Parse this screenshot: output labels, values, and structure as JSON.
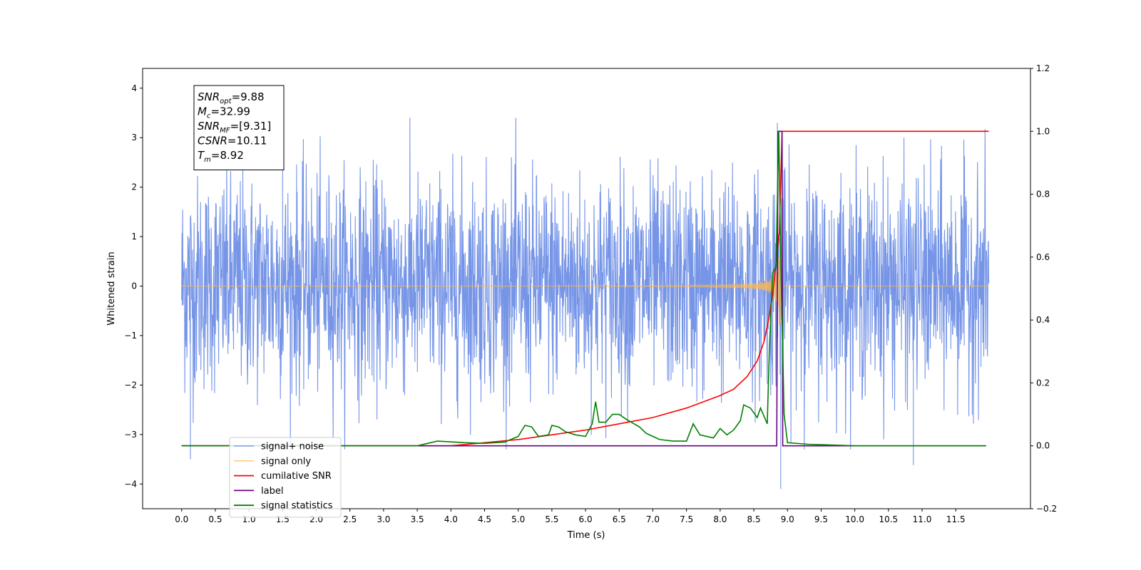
{
  "chart_data": {
    "type": "line",
    "title": "",
    "xlabel": "Time (s)",
    "ylabel": "Whitened strain",
    "xlim": [
      -0.58,
      12.61
    ],
    "ylim": [
      -4.5,
      4.4
    ],
    "y2lim": [
      -0.2,
      1.2
    ],
    "x_ticks": [
      0.0,
      0.5,
      1.0,
      1.5,
      2.0,
      2.5,
      3.0,
      3.5,
      4.0,
      4.5,
      5.0,
      5.5,
      6.0,
      6.5,
      7.0,
      7.5,
      8.0,
      8.5,
      9.0,
      9.5,
      10.0,
      10.5,
      11.0,
      11.5
    ],
    "x_tick_labels": [
      "0.0",
      "0.5",
      "1.0",
      "1.5",
      "2.0",
      "2.5",
      "3.0",
      "3.5",
      "4.0",
      "4.5",
      "5.0",
      "5.5",
      "6.0",
      "6.5",
      "7.0",
      "7.5",
      "8.0",
      "8.5",
      "9.0",
      "9.5",
      "10.0",
      "10.5",
      "11.0",
      "11.5"
    ],
    "y_ticks": [
      -4,
      -3,
      -2,
      -1,
      0,
      1,
      2,
      3,
      4
    ],
    "y_tick_labels": [
      "−4",
      "−3",
      "−2",
      "−1",
      "0",
      "1",
      "2",
      "3",
      "4"
    ],
    "y2_ticks": [
      -0.2,
      0.0,
      0.2,
      0.4,
      0.6,
      0.8,
      1.0,
      1.2
    ],
    "y2_tick_labels": [
      "−0.2",
      "0.0",
      "0.2",
      "0.4",
      "0.6",
      "0.8",
      "1.0",
      "1.2"
    ],
    "grid": false,
    "legend_position": "lower-left",
    "annotation": {
      "lines": [
        {
          "sym": "SNR",
          "sub": "opt",
          "rest": "=9.88"
        },
        {
          "sym": "M",
          "sub": "c",
          "rest": "=32.99"
        },
        {
          "sym": "SNR",
          "sub": "MF",
          "rest": "=[9.31]"
        },
        {
          "sym": "CSNR",
          "sub": "",
          "rest": "=10.11"
        },
        {
          "sym": "T",
          "sub": "m",
          "rest": "=8.92"
        }
      ]
    },
    "series": [
      {
        "name": "signal+ noise",
        "axis": "left",
        "color": "#6f8fe6",
        "kind": "noise",
        "x_range": [
          0.0,
          11.99
        ],
        "typical_band": [
          -1.9,
          2.0
        ],
        "notable_peaks": [
          [
            0.13,
            -3.5
          ],
          [
            1.5,
            3.55
          ],
          [
            8.85,
            3.3
          ],
          [
            8.9,
            -4.1
          ],
          [
            10.87,
            -3.62
          ]
        ]
      },
      {
        "name": "signal only",
        "axis": "left",
        "color": "#ffb84d",
        "kind": "chirp",
        "x_range": [
          0.0,
          11.99
        ],
        "merger_time": 8.9,
        "peak_amplitude": 1.3
      },
      {
        "name": "cumilative SNR",
        "axis": "right",
        "color": "#ff0000",
        "points": [
          [
            0,
            0
          ],
          [
            4.0,
            0.0
          ],
          [
            5.0,
            0.02
          ],
          [
            6.0,
            0.05
          ],
          [
            6.5,
            0.07
          ],
          [
            7.0,
            0.09
          ],
          [
            7.5,
            0.12
          ],
          [
            8.0,
            0.16
          ],
          [
            8.2,
            0.18
          ],
          [
            8.4,
            0.22
          ],
          [
            8.55,
            0.27
          ],
          [
            8.65,
            0.33
          ],
          [
            8.72,
            0.4
          ],
          [
            8.78,
            0.48
          ],
          [
            8.82,
            0.56
          ],
          [
            8.85,
            0.62
          ],
          [
            8.88,
            0.68
          ],
          [
            8.92,
            1.0
          ],
          [
            11.99,
            1.0
          ]
        ]
      },
      {
        "name": "label",
        "axis": "right",
        "color": "#6a0080",
        "points": [
          [
            0,
            0
          ],
          [
            8.84,
            0
          ],
          [
            8.86,
            1.0
          ],
          [
            8.92,
            1.0
          ],
          [
            8.93,
            0
          ],
          [
            11.95,
            0
          ]
        ]
      },
      {
        "name": "signal statistics",
        "axis": "right",
        "color": "#008000",
        "points": [
          [
            0,
            0
          ],
          [
            2.0,
            0.0
          ],
          [
            3.0,
            0.0
          ],
          [
            3.5,
            0.0
          ],
          [
            3.8,
            0.015
          ],
          [
            4.2,
            0.01
          ],
          [
            4.5,
            0.008
          ],
          [
            4.8,
            0.012
          ],
          [
            5.0,
            0.03
          ],
          [
            5.1,
            0.065
          ],
          [
            5.2,
            0.06
          ],
          [
            5.3,
            0.03
          ],
          [
            5.45,
            0.035
          ],
          [
            5.5,
            0.065
          ],
          [
            5.6,
            0.06
          ],
          [
            5.7,
            0.045
          ],
          [
            5.85,
            0.035
          ],
          [
            6.0,
            0.03
          ],
          [
            6.1,
            0.07
          ],
          [
            6.15,
            0.14
          ],
          [
            6.2,
            0.075
          ],
          [
            6.3,
            0.075
          ],
          [
            6.4,
            0.1
          ],
          [
            6.5,
            0.1
          ],
          [
            6.6,
            0.085
          ],
          [
            6.8,
            0.06
          ],
          [
            6.9,
            0.04
          ],
          [
            7.0,
            0.03
          ],
          [
            7.1,
            0.02
          ],
          [
            7.3,
            0.015
          ],
          [
            7.5,
            0.015
          ],
          [
            7.6,
            0.07
          ],
          [
            7.7,
            0.035
          ],
          [
            7.9,
            0.025
          ],
          [
            8.0,
            0.055
          ],
          [
            8.1,
            0.035
          ],
          [
            8.2,
            0.05
          ],
          [
            8.3,
            0.08
          ],
          [
            8.35,
            0.13
          ],
          [
            8.45,
            0.12
          ],
          [
            8.55,
            0.09
          ],
          [
            8.6,
            0.12
          ],
          [
            8.7,
            0.07
          ],
          [
            8.73,
            0.3
          ],
          [
            8.78,
            0.55
          ],
          [
            8.83,
            0.57
          ],
          [
            8.87,
            1.0
          ],
          [
            8.9,
            0.6
          ],
          [
            8.95,
            0.1
          ],
          [
            9.0,
            0.01
          ],
          [
            9.3,
            0.005
          ],
          [
            10.0,
            0.0
          ],
          [
            11.95,
            0.0
          ]
        ]
      }
    ]
  }
}
